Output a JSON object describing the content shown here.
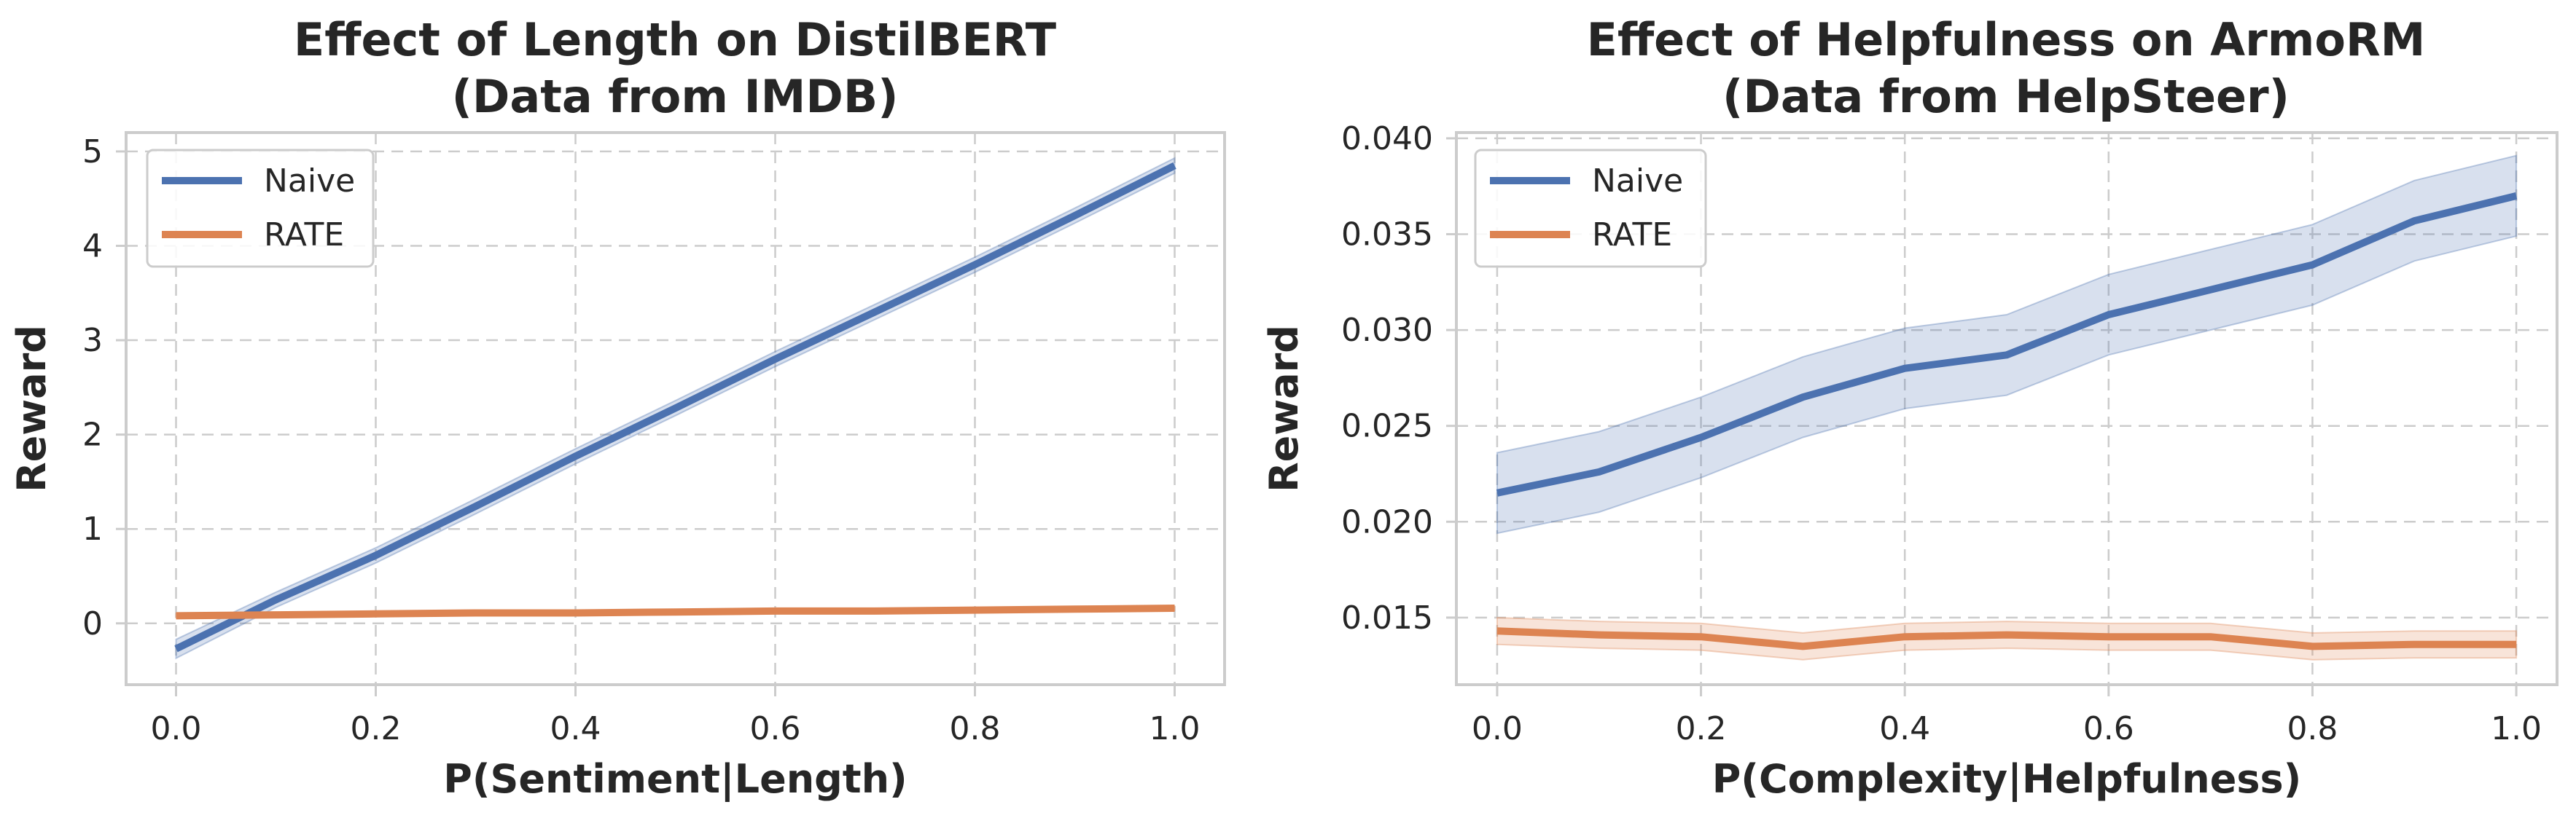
{
  "colors": {
    "naive": "#4c72b0",
    "rate": "#dd8452"
  },
  "chart_data": [
    {
      "type": "line",
      "title": [
        "Effect of Length on DistilBERT",
        "(Data from IMDB)"
      ],
      "xlabel": "P(Sentiment|Length)",
      "ylabel": "Reward",
      "xlim": [
        -0.05,
        1.05
      ],
      "ylim": [
        -0.65,
        5.2
      ],
      "xticks": [
        0.0,
        0.2,
        0.4,
        0.6,
        0.8,
        1.0
      ],
      "xtick_labels": [
        "0.0",
        "0.2",
        "0.4",
        "0.6",
        "0.8",
        "1.0"
      ],
      "yticks": [
        0,
        1,
        2,
        3,
        4,
        5
      ],
      "ytick_labels": [
        "0",
        "1",
        "2",
        "3",
        "4",
        "5"
      ],
      "grid": true,
      "legend_position": "top-left",
      "series": [
        {
          "name": "Naive",
          "color_key": "naive",
          "x": [
            0.0,
            0.1,
            0.2,
            0.3,
            0.4,
            0.5,
            0.6,
            0.7,
            0.8,
            0.9,
            1.0
          ],
          "y": [
            -0.27,
            0.25,
            0.72,
            1.24,
            1.77,
            2.28,
            2.8,
            3.3,
            3.8,
            4.32,
            4.85
          ],
          "lower": [
            -0.37,
            0.17,
            0.64,
            1.16,
            1.69,
            2.2,
            2.72,
            3.22,
            3.72,
            4.24,
            4.77
          ],
          "upper": [
            -0.17,
            0.33,
            0.8,
            1.32,
            1.85,
            2.36,
            2.88,
            3.38,
            3.88,
            4.4,
            4.93
          ]
        },
        {
          "name": "RATE",
          "color_key": "rate",
          "x": [
            0.0,
            0.1,
            0.2,
            0.3,
            0.4,
            0.5,
            0.6,
            0.7,
            0.8,
            0.9,
            1.0
          ],
          "y": [
            0.08,
            0.09,
            0.1,
            0.11,
            0.11,
            0.12,
            0.13,
            0.13,
            0.14,
            0.15,
            0.16
          ],
          "lower": [
            0.06,
            0.07,
            0.08,
            0.09,
            0.09,
            0.1,
            0.11,
            0.11,
            0.12,
            0.13,
            0.14
          ],
          "upper": [
            0.1,
            0.11,
            0.12,
            0.13,
            0.13,
            0.14,
            0.15,
            0.15,
            0.16,
            0.17,
            0.18
          ]
        }
      ]
    },
    {
      "type": "line",
      "title": [
        "Effect of Helpfulness on ArmoRM",
        "(Data from HelpSteer)"
      ],
      "xlabel": "P(Complexity|Helpfulness)",
      "ylabel": "Reward",
      "xlim": [
        -0.04,
        1.04
      ],
      "ylim": [
        0.0115,
        0.0403
      ],
      "xticks": [
        0.0,
        0.2,
        0.4,
        0.6,
        0.8,
        1.0
      ],
      "xtick_labels": [
        "0.0",
        "0.2",
        "0.4",
        "0.6",
        "0.8",
        "1.0"
      ],
      "yticks": [
        0.015,
        0.02,
        0.025,
        0.03,
        0.035,
        0.04
      ],
      "ytick_labels": [
        "0.015",
        "0.020",
        "0.025",
        "0.030",
        "0.035",
        "0.040"
      ],
      "grid": true,
      "legend_position": "top-left",
      "series": [
        {
          "name": "Naive",
          "color_key": "naive",
          "x": [
            0.0,
            0.1,
            0.2,
            0.3,
            0.4,
            0.5,
            0.6,
            0.7,
            0.8,
            0.9,
            1.0
          ],
          "y": [
            0.0215,
            0.0226,
            0.0244,
            0.0265,
            0.028,
            0.0287,
            0.0308,
            0.0321,
            0.0334,
            0.0357,
            0.037
          ],
          "lower": [
            0.0194,
            0.0205,
            0.0223,
            0.0244,
            0.0259,
            0.0266,
            0.0287,
            0.03,
            0.0313,
            0.0336,
            0.0349
          ],
          "upper": [
            0.0236,
            0.0247,
            0.0265,
            0.0286,
            0.0301,
            0.0308,
            0.0329,
            0.0342,
            0.0355,
            0.0378,
            0.0391
          ]
        },
        {
          "name": "RATE",
          "color_key": "rate",
          "x": [
            0.0,
            0.1,
            0.2,
            0.3,
            0.4,
            0.5,
            0.6,
            0.7,
            0.8,
            0.9,
            1.0
          ],
          "y": [
            0.0143,
            0.0141,
            0.014,
            0.0135,
            0.014,
            0.0141,
            0.014,
            0.014,
            0.0135,
            0.0136,
            0.0136
          ],
          "lower": [
            0.0136,
            0.0134,
            0.0133,
            0.0128,
            0.0133,
            0.0134,
            0.0133,
            0.0133,
            0.0128,
            0.0129,
            0.0129
          ],
          "upper": [
            0.015,
            0.0148,
            0.0147,
            0.0142,
            0.0147,
            0.0148,
            0.0147,
            0.0147,
            0.0142,
            0.0143,
            0.0143
          ]
        }
      ]
    }
  ]
}
